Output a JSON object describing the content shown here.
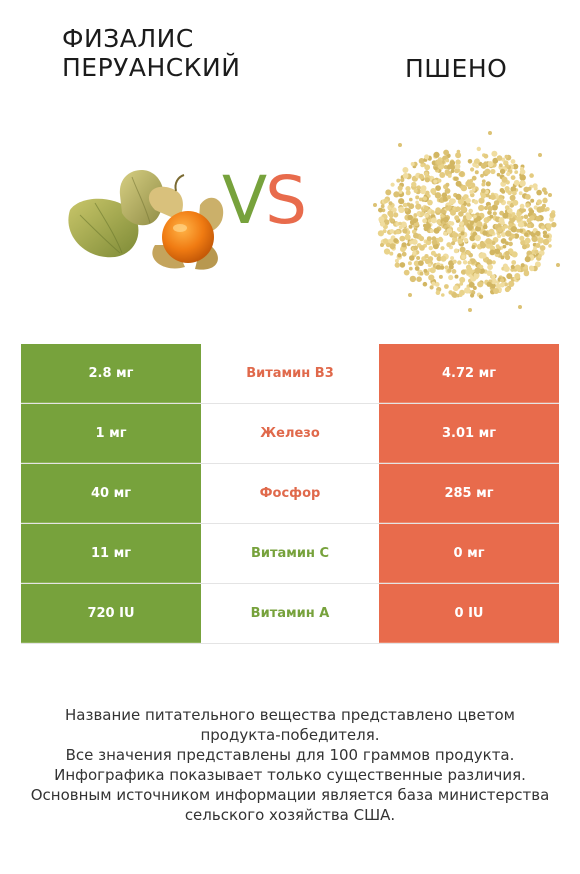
{
  "header": {
    "left_title_line1": "Физалис",
    "left_title_line2": "перуанский",
    "right_title": "Пшено",
    "vs_v": "V",
    "vs_s": "S"
  },
  "colors": {
    "green": "#77a23c",
    "orange": "#e86b4c"
  },
  "comparison": {
    "rows": [
      {
        "left": "2.8 мг",
        "nutrient": "Витамин B3",
        "right": "4.72 мг",
        "winner": "right"
      },
      {
        "left": "1 мг",
        "nutrient": "Железо",
        "right": "3.01 мг",
        "winner": "right"
      },
      {
        "left": "40 мг",
        "nutrient": "Фосфор",
        "right": "285 мг",
        "winner": "right"
      },
      {
        "left": "11 мг",
        "nutrient": "Витамин C",
        "right": "0 мг",
        "winner": "left"
      },
      {
        "left": "720 IU",
        "nutrient": "Витамин A",
        "right": "0 IU",
        "winner": "left"
      }
    ]
  },
  "footer": {
    "line1": "Название питательного вещества представлено цветом",
    "line2": "продукта-победителя.",
    "line3": "Все значения представлены для 100 граммов продукта.",
    "line4": "Инфографика показывает только существенные различия.",
    "line5": "Основным источником информации является база министерства",
    "line6": "сельского хозяйства США."
  }
}
